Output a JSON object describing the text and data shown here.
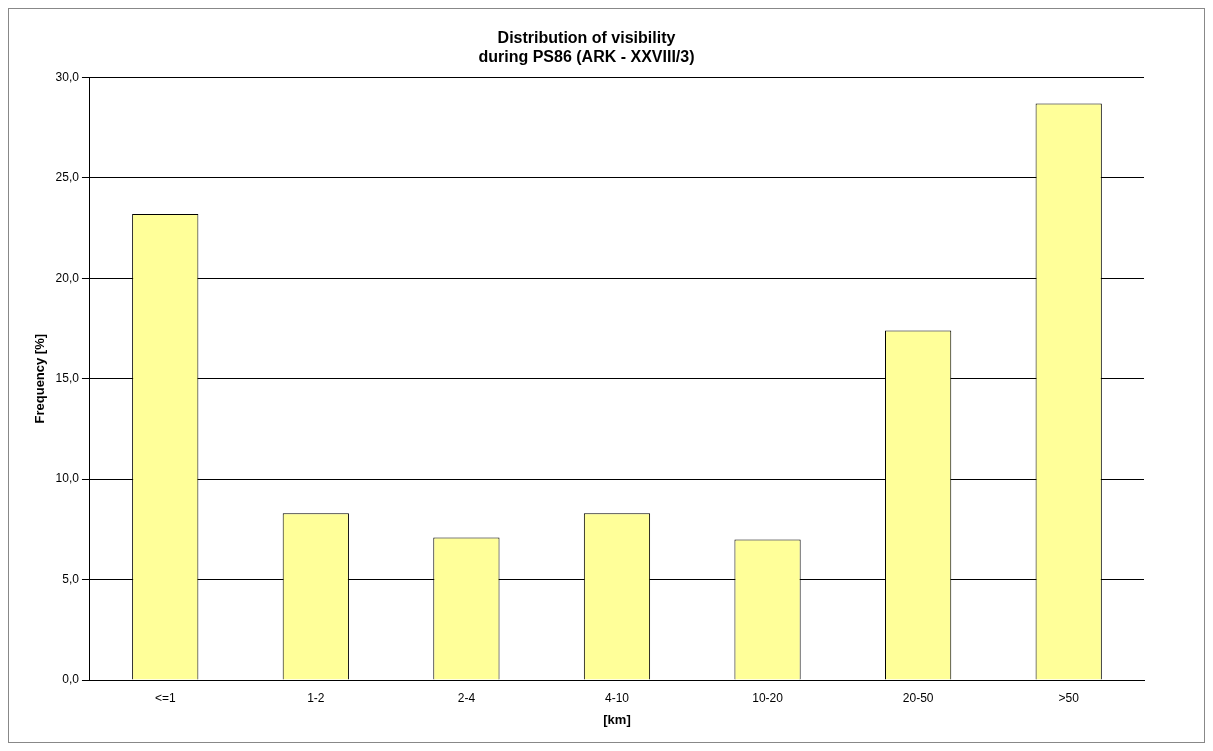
{
  "chart_data": {
    "type": "bar",
    "title": "Distribution of visibility\nduring PS86 (ARK - XXVIII/3)",
    "xlabel": "[km]",
    "ylabel": "Frequency [%]",
    "categories": [
      "<=1",
      "1-2",
      "2-4",
      "4-10",
      "10-20",
      "20-50",
      ">50"
    ],
    "values": [
      23.2,
      8.3,
      7.1,
      8.3,
      7.0,
      17.4,
      28.7
    ],
    "color": "#ffff99",
    "ylim": [
      0,
      30
    ],
    "yticks": [
      {
        "value": 0,
        "label": "0,0"
      },
      {
        "value": 5,
        "label": "5,0"
      },
      {
        "value": 10,
        "label": "10,0"
      },
      {
        "value": 15,
        "label": "15,0"
      },
      {
        "value": 20,
        "label": "20,0"
      },
      {
        "value": 25,
        "label": "25,0"
      },
      {
        "value": 30,
        "label": "30,0"
      }
    ],
    "grid": "y"
  }
}
